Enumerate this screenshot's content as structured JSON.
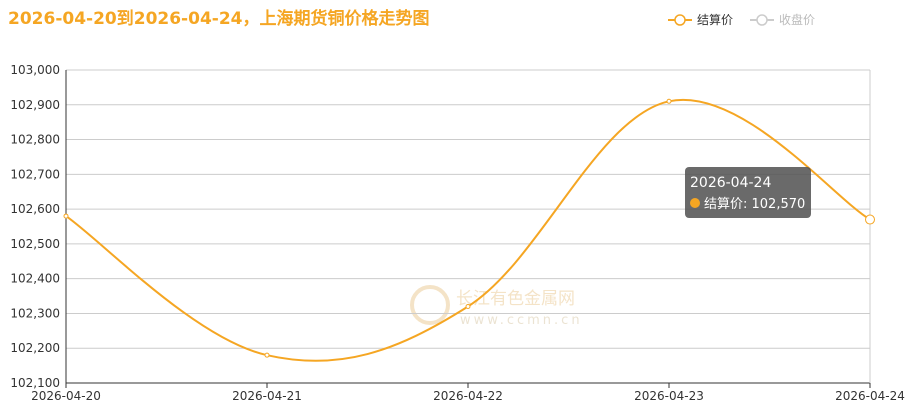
{
  "chart_data": {
    "type": "line",
    "title": "2026-04-20到2026-04-24，上海期货铜价格走势图",
    "categories": [
      "2026-04-20",
      "2026-04-21",
      "2026-04-22",
      "2026-04-23",
      "2026-04-24"
    ],
    "series": [
      {
        "name": "结算价",
        "color": "#f5a623",
        "values": [
          102580,
          102180,
          102320,
          102910,
          102570
        ]
      },
      {
        "name": "收盘价",
        "color": "#cccccc",
        "values": [
          null,
          null,
          null,
          null,
          null
        ]
      }
    ],
    "ylim": [
      102100,
      103000
    ],
    "yticks": [
      {
        "value": 102100,
        "label": "102,100"
      },
      {
        "value": 102200,
        "label": "102,200"
      },
      {
        "value": 102300,
        "label": "102,300"
      },
      {
        "value": 102400,
        "label": "102,400"
      },
      {
        "value": 102500,
        "label": "102,500"
      },
      {
        "value": 102600,
        "label": "102,600"
      },
      {
        "value": 102700,
        "label": "102,700"
      },
      {
        "value": 102800,
        "label": "102,800"
      },
      {
        "value": 102900,
        "label": "102,900"
      },
      {
        "value": 103000,
        "label": "103,000"
      }
    ],
    "grid": true,
    "tooltip": {
      "title": "2026-04-24",
      "text": "结算价: 102,570"
    },
    "watermark": {
      "name": "长江有色金属网",
      "url": "www.ccmn.cn"
    }
  }
}
